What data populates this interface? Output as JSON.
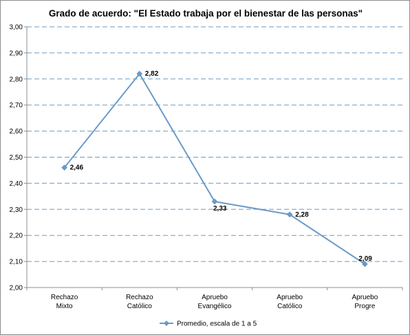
{
  "chart_data": {
    "type": "line",
    "title": "Grado de acuerdo: \"El Estado trabaja por el bienestar de las personas\"",
    "categories": [
      [
        "Rechazo",
        "Mixto"
      ],
      [
        "Rechazo",
        "Católico"
      ],
      [
        "Apruebo",
        "Evangélico"
      ],
      [
        "Apruebo",
        "Católico"
      ],
      [
        "Apruebo",
        "Progre"
      ]
    ],
    "series": [
      {
        "name": "Promedio, escala de 1 a 5",
        "values": [
          2.46,
          2.82,
          2.33,
          2.28,
          2.09
        ],
        "labels": [
          "2,46",
          "2,82",
          "2,33",
          "2,28",
          "2,09"
        ],
        "color": "#6a9ac9"
      }
    ],
    "ylim": [
      2.0,
      3.0
    ],
    "yticks": [
      {
        "v": 2.0,
        "label": "2,00"
      },
      {
        "v": 2.1,
        "label": "2,10"
      },
      {
        "v": 2.2,
        "label": "2,20"
      },
      {
        "v": 2.3,
        "label": "2,30"
      },
      {
        "v": 2.4,
        "label": "2,40"
      },
      {
        "v": 2.5,
        "label": "2,50"
      },
      {
        "v": 2.6,
        "label": "2,60"
      },
      {
        "v": 2.7,
        "label": "2,70"
      },
      {
        "v": 2.8,
        "label": "2,80"
      },
      {
        "v": 2.9,
        "label": "2,90"
      },
      {
        "v": 3.0,
        "label": "3,00"
      }
    ],
    "grid": "dashed horizontal",
    "grid_color": "#6b9bc3",
    "legend_position": "bottom"
  }
}
